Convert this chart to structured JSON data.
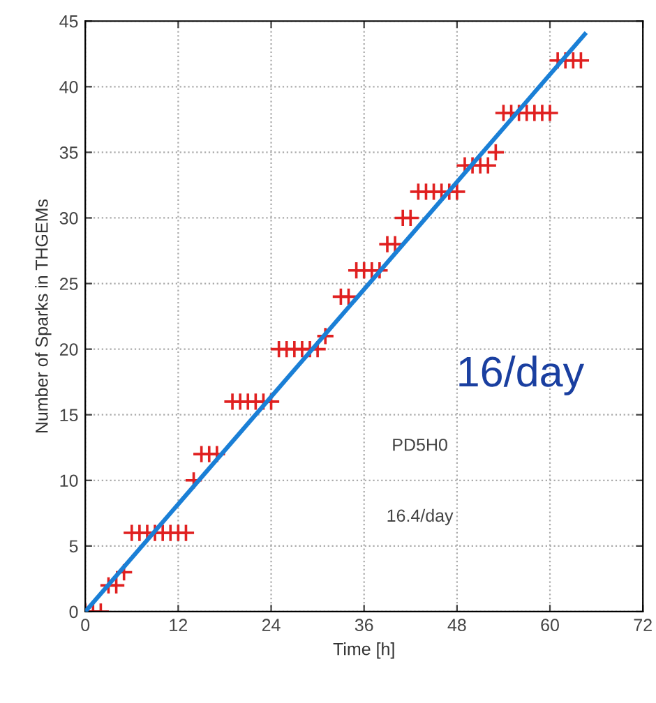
{
  "chart_data": {
    "type": "scatter",
    "xlabel": "Time [h]",
    "ylabel": "Number of Sparks in THGEMs",
    "xlim": [
      0,
      72
    ],
    "ylim": [
      0,
      45
    ],
    "xticks": [
      0,
      12,
      24,
      36,
      48,
      60,
      72
    ],
    "yticks": [
      0,
      5,
      10,
      15,
      20,
      25,
      30,
      35,
      40,
      45
    ],
    "grid": true,
    "series": [
      {
        "marker": "cross",
        "color": "#e02020",
        "x": [
          0,
          1,
          2,
          3,
          4,
          5,
          6,
          7,
          8,
          9,
          10,
          11,
          12,
          13,
          14,
          15,
          16,
          17,
          19,
          20,
          21,
          22,
          23,
          24,
          25,
          26,
          27,
          28,
          29,
          30,
          31,
          33,
          34,
          35,
          36,
          37,
          38,
          39,
          40,
          41,
          42,
          43,
          44,
          45,
          46,
          47,
          48,
          49,
          50,
          51,
          52,
          53,
          54,
          55,
          56,
          57,
          58,
          59,
          60,
          61,
          62,
          63,
          64
        ],
        "values": [
          0,
          0,
          0,
          2,
          2,
          3,
          6,
          6,
          6,
          6,
          6,
          6,
          6,
          6,
          10,
          12,
          12,
          12,
          16,
          16,
          16,
          16,
          16,
          16,
          20,
          20,
          20,
          20,
          20,
          20,
          21,
          24,
          24,
          26,
          26,
          26,
          26,
          28,
          28,
          30,
          30,
          32,
          32,
          32,
          32,
          32,
          32,
          34,
          34,
          34,
          34,
          35,
          38,
          38,
          38,
          38,
          38,
          38,
          38,
          42,
          42,
          42,
          42
        ]
      },
      {
        "type": "line",
        "color": "#1a7fd6",
        "x": [
          0,
          64.5
        ],
        "values": [
          0,
          44
        ]
      }
    ],
    "annotations": [
      "16/day",
      "PD5H0",
      "16.4/day"
    ]
  }
}
